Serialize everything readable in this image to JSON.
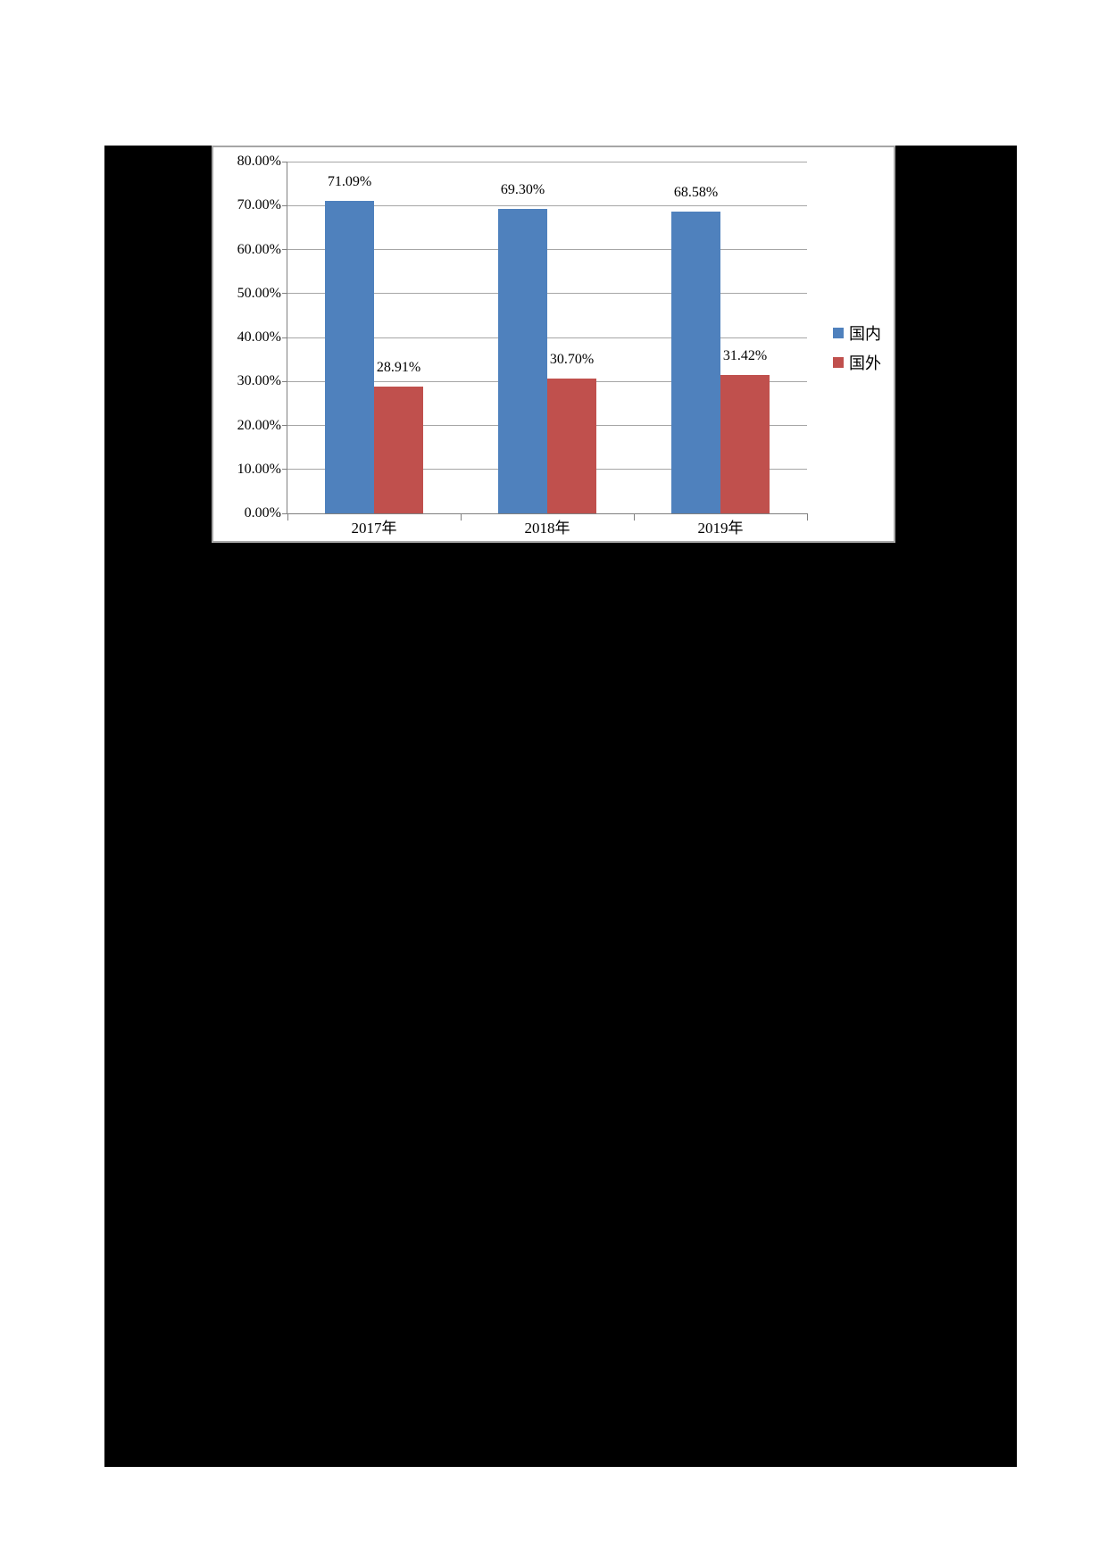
{
  "chart_data": {
    "type": "bar",
    "title": "",
    "xlabel": "",
    "ylabel": "",
    "categories": [
      "2017年",
      "2018年",
      "2019年"
    ],
    "series": [
      {
        "name": "国内",
        "slug": "domestic",
        "color": "#4f81bd",
        "values": [
          71.09,
          69.3,
          68.58
        ],
        "labels": [
          "71.09%",
          "69.30%",
          "68.58%"
        ]
      },
      {
        "name": "国外",
        "slug": "overseas",
        "color": "#c0504d",
        "values": [
          28.91,
          30.7,
          31.42
        ],
        "labels": [
          "28.91%",
          "30.70%",
          "31.42%"
        ]
      }
    ],
    "y_axis": {
      "min": 0,
      "max": 80,
      "step": 10,
      "tick_labels": [
        "0.00%",
        "10.00%",
        "20.00%",
        "30.00%",
        "40.00%",
        "50.00%",
        "60.00%",
        "70.00%",
        "80.00%"
      ]
    },
    "grid": true,
    "legend_position": "right",
    "legend_entries": [
      "国内",
      "国外"
    ],
    "style_colors": {
      "gridline": "#a6a6a6",
      "axis": "#808080",
      "panel_border": "#a6a6a6",
      "page_background": "#ffffff",
      "surround_background": "#000000"
    }
  }
}
